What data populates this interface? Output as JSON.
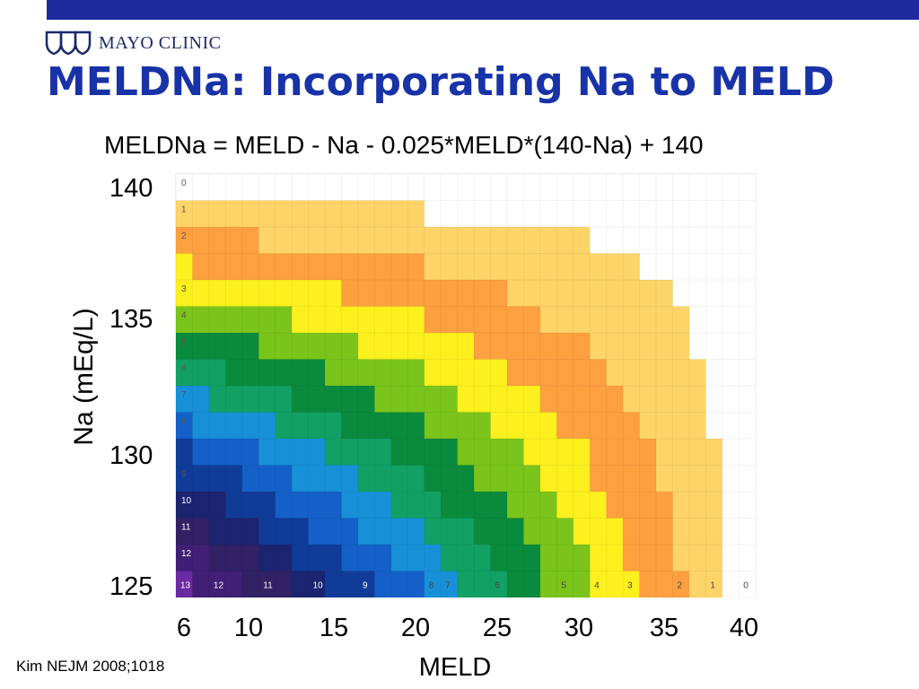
{
  "header": {
    "logo_text": "MAYO CLINIC"
  },
  "title": "MELDNa: Incorporating Na to MELD",
  "formula": "MELDNa = MELD - Na - 0.025*MELD*(140-Na) + 140",
  "citation": "Kim NEJM 2008;1018",
  "colors": {
    "bar": "#1f2a9e",
    "title": "#1832a8",
    "palette": [
      "#ffffff",
      "#fdd468",
      "#fca040",
      "#fcf01e",
      "#7ac41c",
      "#0a8a3c",
      "#12a064",
      "#1890d8",
      "#1460c8",
      "#103c98",
      "#1c2470",
      "#302064",
      "#401f74",
      "#6a2aa2"
    ]
  },
  "chart_data": {
    "type": "heatmap",
    "title": "",
    "xlabel": "MELD",
    "ylabel": "Na (mEq/L)",
    "x_tick_labels": [
      "6",
      "10",
      "15",
      "20",
      "25",
      "30",
      "35",
      "40"
    ],
    "y_tick_labels": [
      "140",
      "135",
      "130",
      "125"
    ],
    "xlim": [
      6,
      40
    ],
    "ylim": [
      125,
      140
    ],
    "x": [
      6,
      7,
      8,
      9,
      10,
      11,
      12,
      13,
      14,
      15,
      16,
      17,
      18,
      19,
      20,
      21,
      22,
      23,
      24,
      25,
      26,
      27,
      28,
      29,
      30,
      31,
      32,
      33,
      34,
      35,
      36,
      37,
      38,
      39,
      40
    ],
    "y": [
      140,
      139,
      138,
      137,
      136,
      135,
      134,
      133,
      132,
      131,
      130,
      129,
      128,
      127,
      126,
      125
    ],
    "value_formula": "MELDNa - MELD = 140 - Na - 0.025*MELD*(140-Na)",
    "row_labels": [
      "0",
      "1",
      "2",
      "",
      "3",
      "4",
      "5",
      "6",
      "7",
      "8",
      "",
      "9",
      "10",
      "11",
      "12",
      "13"
    ],
    "bottom_row_labels": [
      {
        "meld": 6,
        "label": "13"
      },
      {
        "meld": 8,
        "label": "12"
      },
      {
        "meld": 11,
        "label": "11"
      },
      {
        "meld": 14,
        "label": "10"
      },
      {
        "meld": 17,
        "label": "9"
      },
      {
        "meld": 21,
        "label": "8"
      },
      {
        "meld": 22,
        "label": "7"
      },
      {
        "meld": 25,
        "label": "6"
      },
      {
        "meld": 29,
        "label": "5"
      },
      {
        "meld": 31,
        "label": "4"
      },
      {
        "meld": 33,
        "label": "3"
      },
      {
        "meld": 36,
        "label": "2"
      },
      {
        "meld": 38,
        "label": "1"
      },
      {
        "meld": 40,
        "label": "0"
      }
    ]
  }
}
